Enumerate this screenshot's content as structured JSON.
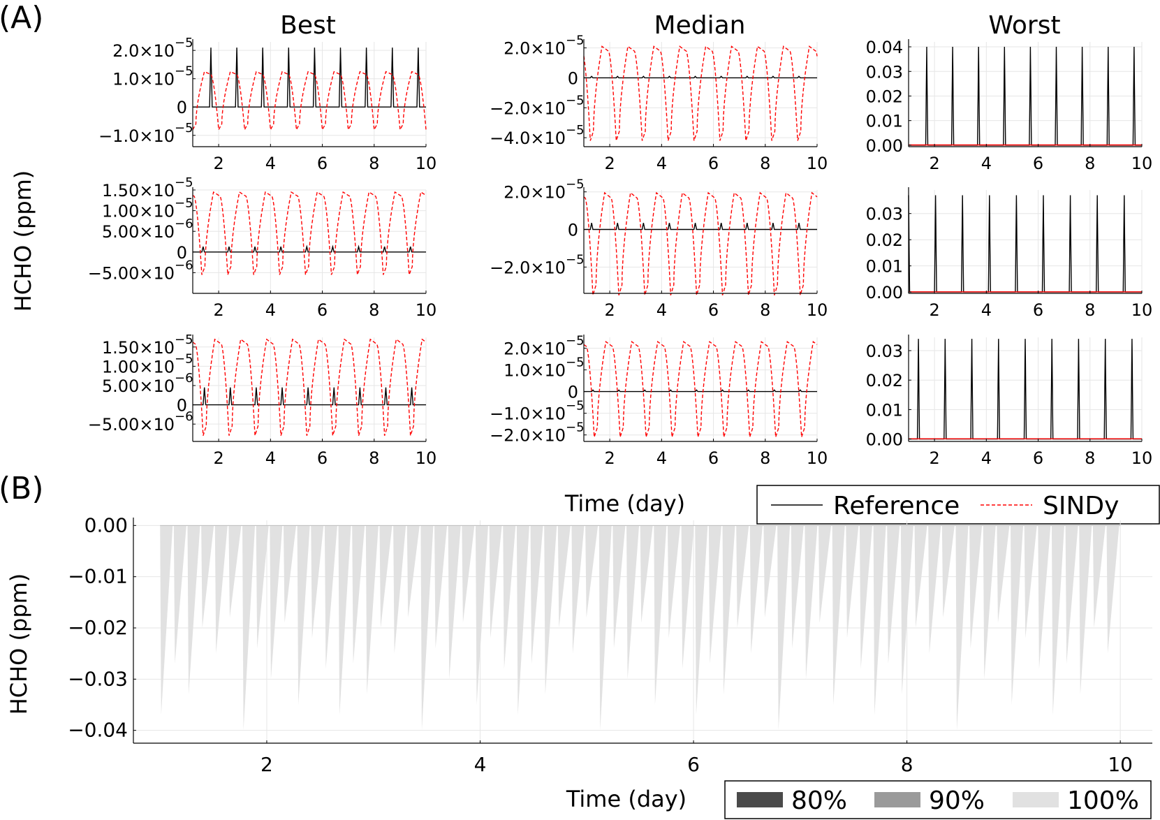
{
  "panel_a": {
    "label": "(A)",
    "column_titles": [
      "Best",
      "Median",
      "Worst"
    ],
    "ylabel": "HCHO (ppm)",
    "xlabel": "Time (day)",
    "x_ticks": [
      2,
      4,
      6,
      8,
      10
    ],
    "legend": [
      {
        "label": "Reference",
        "color": "#000000",
        "dash": false
      },
      {
        "label": "SINDy",
        "color": "#ff0000",
        "dash": true
      }
    ]
  },
  "panel_b": {
    "label": "(B)",
    "ylabel": "HCHO (ppm)",
    "xlabel": "Time (day)",
    "x_ticks": [
      2,
      4,
      6,
      8,
      10
    ],
    "y_ticks": [
      "0.00",
      "−0.01",
      "−0.02",
      "−0.03",
      "−0.04"
    ],
    "legend": [
      {
        "label": "80%",
        "color": "#4a4a4a"
      },
      {
        "label": "90%",
        "color": "#9a9a9a"
      },
      {
        "label": "100%",
        "color": "#e1e1e1"
      }
    ]
  },
  "chart_data": [
    {
      "id": "best-1",
      "type": "line",
      "title": "Best",
      "xlim": [
        1,
        10
      ],
      "ylim": [
        -1.4e-05,
        2.3e-05
      ],
      "yticks": [
        {
          "v": 2e-05,
          "m": "2.0×10",
          "e": "−5"
        },
        {
          "v": 1e-05,
          "m": "1.0×10",
          "e": "−5"
        },
        {
          "v": 0,
          "m": "0",
          "e": ""
        },
        {
          "v": -1e-05,
          "m": "−1.0×10",
          "e": "−5"
        }
      ],
      "series": [
        {
          "name": "Reference",
          "color": "#000000",
          "dash": false,
          "kind": "spike",
          "period": 1,
          "phase": 0.7,
          "peak": 2.1e-05,
          "width": 0.05,
          "base": 0
        },
        {
          "name": "SINDy",
          "color": "#ff0000",
          "dash": true,
          "kind": "wave",
          "period": 1,
          "phase": 0.0,
          "hi": 1.25e-05,
          "lo": -8e-06,
          "base": 0
        }
      ]
    },
    {
      "id": "median-1",
      "type": "line",
      "title": "Median",
      "xlim": [
        1,
        10
      ],
      "ylim": [
        -4.6e-05,
        2.4e-05
      ],
      "yticks": [
        {
          "v": 2e-05,
          "m": "2.0×10",
          "e": "−5"
        },
        {
          "v": 0,
          "m": "0",
          "e": ""
        },
        {
          "v": -2e-05,
          "m": "−2.0×10",
          "e": "−5"
        },
        {
          "v": -4e-05,
          "m": "−4.0×10",
          "e": "−5"
        }
      ],
      "series": [
        {
          "name": "Reference",
          "color": "#000000",
          "dash": false,
          "kind": "spike",
          "period": 1,
          "phase": 0.3,
          "peak": 1e-06,
          "width": 0.05,
          "base": 0
        },
        {
          "name": "SINDy",
          "color": "#ff0000",
          "dash": true,
          "kind": "wave",
          "period": 1,
          "phase": 0.25,
          "hi": 2.1e-05,
          "lo": -4.2e-05,
          "base": 0
        }
      ]
    },
    {
      "id": "worst-1",
      "type": "line",
      "title": "Worst",
      "xlim": [
        1,
        10
      ],
      "ylim": [
        -0.0006,
        0.042
      ],
      "yticks": [
        {
          "v": 0.04,
          "m": "0.04",
          "e": ""
        },
        {
          "v": 0.03,
          "m": "0.03",
          "e": ""
        },
        {
          "v": 0.02,
          "m": "0.02",
          "e": ""
        },
        {
          "v": 0.01,
          "m": "0.01",
          "e": ""
        },
        {
          "v": 0,
          "m": "0.00",
          "e": ""
        }
      ],
      "series": [
        {
          "name": "Reference",
          "color": "#000000",
          "dash": false,
          "kind": "spike",
          "period": 1,
          "phase": 0.7,
          "peak": 0.04,
          "width": 0.04,
          "base": 0
        },
        {
          "name": "SINDy",
          "color": "#ff0000",
          "dash": false,
          "kind": "flat",
          "base": 0.0001
        }
      ]
    },
    {
      "id": "best-2",
      "type": "line",
      "xlim": [
        1,
        10
      ],
      "ylim": [
        -1e-05,
        1.5e-05
      ],
      "yticks": [
        {
          "v": 1.5e-05,
          "m": "1.50×10",
          "e": "−5"
        },
        {
          "v": 1e-05,
          "m": "1.00×10",
          "e": "−5"
        },
        {
          "v": 5e-06,
          "m": "5.00×10",
          "e": "−6"
        },
        {
          "v": 0,
          "m": "0",
          "e": ""
        },
        {
          "v": -5e-06,
          "m": "−5.00×10",
          "e": "−6"
        }
      ],
      "series": [
        {
          "name": "Reference",
          "color": "#000000",
          "dash": false,
          "kind": "spike",
          "period": 1,
          "phase": 0.4,
          "peak": 1.3e-06,
          "width": 0.05,
          "base": 0
        },
        {
          "name": "SINDy",
          "color": "#ff0000",
          "dash": true,
          "kind": "wave",
          "period": 1,
          "phase": 0.35,
          "hi": 1.45e-05,
          "lo": -5.5e-06,
          "base": 0
        }
      ]
    },
    {
      "id": "median-2",
      "type": "line",
      "xlim": [
        1,
        10
      ],
      "ylim": [
        -3.4e-05,
        2.1e-05
      ],
      "yticks": [
        {
          "v": 2e-05,
          "m": "2.0×10",
          "e": "−5"
        },
        {
          "v": 0,
          "m": "0",
          "e": ""
        },
        {
          "v": -2e-05,
          "m": "−2.0×10",
          "e": "−5"
        }
      ],
      "series": [
        {
          "name": "Reference",
          "color": "#000000",
          "dash": false,
          "kind": "spike",
          "period": 1,
          "phase": 0.3,
          "peak": 3.5e-06,
          "width": 0.05,
          "base": 0
        },
        {
          "name": "SINDy",
          "color": "#ff0000",
          "dash": true,
          "kind": "wave",
          "period": 1,
          "phase": 0.35,
          "hi": 1.95e-05,
          "lo": -3.5e-05,
          "base": 0
        }
      ]
    },
    {
      "id": "worst-2",
      "type": "line",
      "xlim": [
        1,
        10
      ],
      "ylim": [
        -0.0005,
        0.039
      ],
      "yticks": [
        {
          "v": 0.03,
          "m": "0.03",
          "e": ""
        },
        {
          "v": 0.02,
          "m": "0.02",
          "e": ""
        },
        {
          "v": 0.01,
          "m": "0.01",
          "e": ""
        },
        {
          "v": 0,
          "m": "0.00",
          "e": ""
        }
      ],
      "series": [
        {
          "name": "Reference",
          "color": "#000000",
          "dash": false,
          "kind": "spike",
          "period": 1.04,
          "phase": 1.0,
          "peak": 0.037,
          "width": 0.04,
          "base": 0
        },
        {
          "name": "SINDy",
          "color": "#ff0000",
          "dash": false,
          "kind": "flat",
          "base": 0.0001
        }
      ]
    },
    {
      "id": "best-3",
      "type": "line",
      "xlim": [
        1,
        10
      ],
      "ylim": [
        -9.5e-06,
        1.75e-05
      ],
      "yticks": [
        {
          "v": 1.5e-05,
          "m": "1.50×10",
          "e": "−5"
        },
        {
          "v": 1e-05,
          "m": "1.00×10",
          "e": "−5"
        },
        {
          "v": 5e-06,
          "m": "5.00×10",
          "e": "−6"
        },
        {
          "v": 0,
          "m": "0",
          "e": ""
        },
        {
          "v": -5e-06,
          "m": "−5.00×10",
          "e": "−6"
        }
      ],
      "series": [
        {
          "name": "Reference",
          "color": "#000000",
          "dash": false,
          "kind": "spike",
          "period": 1,
          "phase": 0.45,
          "peak": 4.5e-06,
          "width": 0.05,
          "base": 0
        },
        {
          "name": "SINDy",
          "color": "#ff0000",
          "dash": true,
          "kind": "wave",
          "period": 1,
          "phase": 0.4,
          "hi": 1.7e-05,
          "lo": -8e-06,
          "base": 0
        }
      ]
    },
    {
      "id": "median-3",
      "type": "line",
      "xlim": [
        1,
        10
      ],
      "ylim": [
        -2.3e-05,
        2.5e-05
      ],
      "yticks": [
        {
          "v": 2e-05,
          "m": "2.0×10",
          "e": "−5"
        },
        {
          "v": 1e-05,
          "m": "1.0×10",
          "e": "−5"
        },
        {
          "v": 0,
          "m": "0",
          "e": ""
        },
        {
          "v": -1e-05,
          "m": "−1.0×10",
          "e": "−5"
        },
        {
          "v": -2e-05,
          "m": "−2.0×10",
          "e": "−5"
        }
      ],
      "series": [
        {
          "name": "Reference",
          "color": "#000000",
          "dash": false,
          "kind": "spike",
          "period": 1,
          "phase": 0.35,
          "peak": 7e-07,
          "width": 0.05,
          "base": 0
        },
        {
          "name": "SINDy",
          "color": "#ff0000",
          "dash": true,
          "kind": "wave",
          "period": 1,
          "phase": 0.4,
          "hi": 2.3e-05,
          "lo": -2.1e-05,
          "base": 0
        }
      ]
    },
    {
      "id": "worst-3",
      "type": "line",
      "xlim": [
        1,
        10
      ],
      "ylim": [
        -0.0008,
        0.0345
      ],
      "yticks": [
        {
          "v": 0.03,
          "m": "0.03",
          "e": ""
        },
        {
          "v": 0.02,
          "m": "0.02",
          "e": ""
        },
        {
          "v": 0.01,
          "m": "0.01",
          "e": ""
        },
        {
          "v": 0,
          "m": "0.00",
          "e": ""
        }
      ],
      "series": [
        {
          "name": "Reference",
          "color": "#000000",
          "dash": false,
          "kind": "spike",
          "period": 1.03,
          "phase": 0.35,
          "peak": 0.034,
          "width": 0.04,
          "base": 0
        },
        {
          "name": "SINDy",
          "color": "#ff0000",
          "dash": false,
          "kind": "flat",
          "base": 0.0001
        }
      ]
    },
    {
      "id": "panel-b",
      "type": "area",
      "xlim": [
        0.75,
        10.3
      ],
      "ylim": [
        -0.0425,
        0.001
      ],
      "yticks": [
        {
          "v": 0,
          "m": "0.00",
          "e": ""
        },
        {
          "v": -0.01,
          "m": "−0.01",
          "e": ""
        },
        {
          "v": -0.02,
          "m": "−0.02",
          "e": ""
        },
        {
          "v": -0.03,
          "m": "−0.03",
          "e": ""
        },
        {
          "v": -0.04,
          "m": "−0.04",
          "e": ""
        }
      ],
      "x_start": 1.0,
      "x_end": 10.0,
      "spike_count": 70,
      "depth_cycle": [
        -0.037,
        -0.027,
        -0.033,
        -0.02,
        -0.025,
        -0.018,
        -0.04,
        -0.024,
        -0.03,
        -0.019,
        -0.035,
        -0.022,
        -0.028
      ],
      "series": [
        {
          "name": "100%",
          "color": "#e1e1e1"
        }
      ]
    }
  ]
}
